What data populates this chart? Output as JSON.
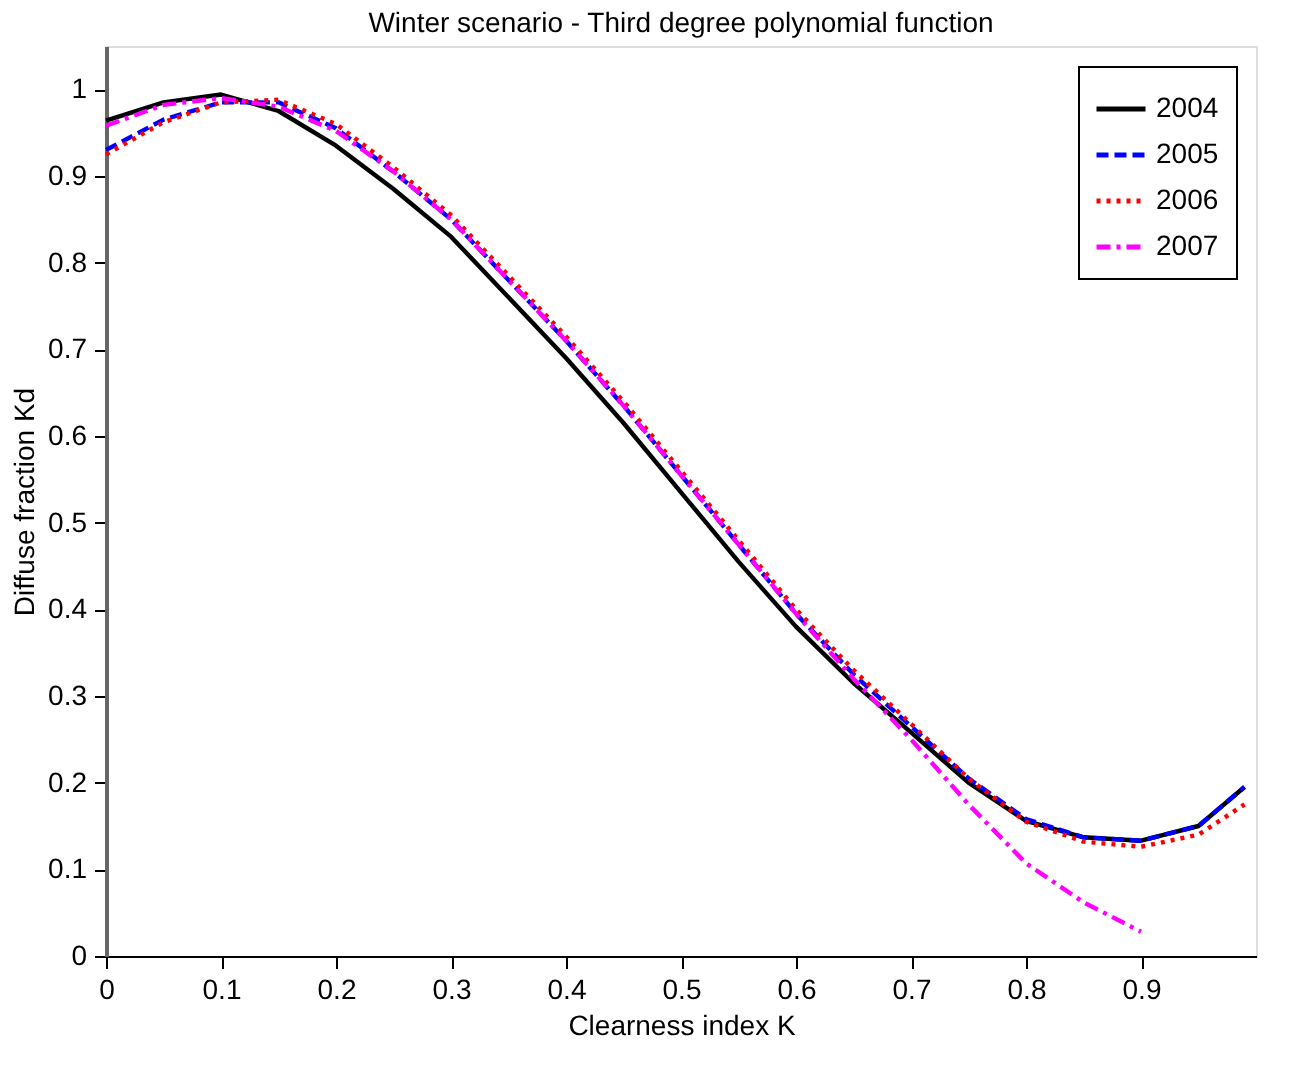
{
  "chart_data": {
    "type": "line",
    "title": "Winter scenario - Third degree polynomial function",
    "xlabel": "Clearness index K",
    "ylabel": "Diffuse fraction Kd",
    "x": [
      0,
      0.05,
      0.1,
      0.15,
      0.2,
      0.25,
      0.3,
      0.35,
      0.4,
      0.45,
      0.5,
      0.55,
      0.6,
      0.65,
      0.7,
      0.75,
      0.8,
      0.85,
      0.9,
      0.95,
      0.99
    ],
    "series": [
      {
        "name": "2004",
        "color": "#000000",
        "line_style": "solid",
        "values": [
          0.964,
          0.985,
          0.994,
          0.975,
          0.935,
          0.885,
          0.83,
          0.76,
          0.69,
          0.615,
          0.535,
          0.455,
          0.38,
          0.315,
          0.258,
          0.2,
          0.156,
          0.137,
          0.133,
          0.15,
          0.195
        ]
      },
      {
        "name": "2005",
        "color": "#0000ff",
        "line_style": "dashed",
        "values": [
          0.93,
          0.965,
          0.985,
          0.985,
          0.955,
          0.905,
          0.85,
          0.78,
          0.71,
          0.635,
          0.555,
          0.475,
          0.395,
          0.325,
          0.265,
          0.205,
          0.158,
          0.137,
          0.133,
          0.15,
          0.195
        ]
      },
      {
        "name": "2006",
        "color": "#ff0000",
        "line_style": "dotted",
        "values": [
          0.925,
          0.962,
          0.985,
          0.988,
          0.96,
          0.91,
          0.855,
          0.785,
          0.715,
          0.64,
          0.56,
          0.48,
          0.4,
          0.33,
          0.268,
          0.205,
          0.155,
          0.132,
          0.126,
          0.14,
          0.175
        ]
      },
      {
        "name": "2007",
        "color": "#ff00ff",
        "line_style": "dashdot",
        "values": [
          0.958,
          0.982,
          0.99,
          0.98,
          0.952,
          0.905,
          0.85,
          0.78,
          0.71,
          0.635,
          0.555,
          0.475,
          0.395,
          0.32,
          0.25,
          0.175,
          0.107,
          0.062,
          0.028,
          null,
          null
        ]
      }
    ],
    "xlim": [
      0,
      1
    ],
    "xticks": [
      0,
      0.1,
      0.2,
      0.3,
      0.4,
      0.5,
      0.6,
      0.7,
      0.8,
      0.9
    ],
    "ylim": [
      0,
      1.05
    ],
    "yticks": [
      0,
      0.1,
      0.2,
      0.3,
      0.4,
      0.5,
      0.6,
      0.7,
      0.8,
      0.9,
      1
    ],
    "legend": "top right",
    "grid": false,
    "marker": "none"
  }
}
